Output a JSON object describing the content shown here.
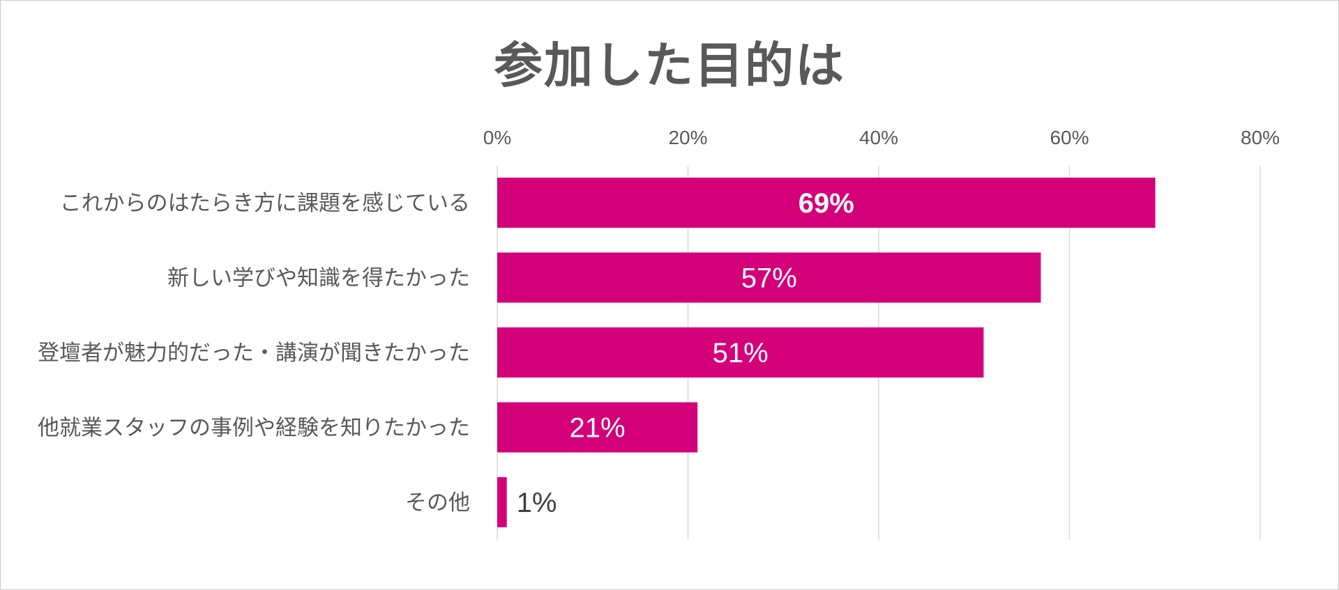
{
  "chart_data": {
    "type": "bar",
    "orientation": "horizontal",
    "title": "参加した目的は",
    "categories": [
      "これからのはたらき方に課題を感じている",
      "新しい学びや知識を得たかった",
      "登壇者が魅力的だった・講演が聞きたかった",
      "他就業スタッフの事例や経験を知りたかった",
      "その他"
    ],
    "values": [
      69,
      57,
      51,
      21,
      1
    ],
    "data_labels": [
      "69%",
      "57%",
      "51%",
      "21%",
      "1%"
    ],
    "xlim": [
      0,
      80
    ],
    "ticks": [
      0,
      20,
      40,
      60,
      80
    ],
    "tick_labels": [
      "0%",
      "20%",
      "40%",
      "60%",
      "80%"
    ],
    "axis_position": "top",
    "grid": true,
    "legend": "none",
    "bar_color": "#D4007A",
    "grid_color": "#D9D9D9",
    "text_color": "#595959"
  }
}
